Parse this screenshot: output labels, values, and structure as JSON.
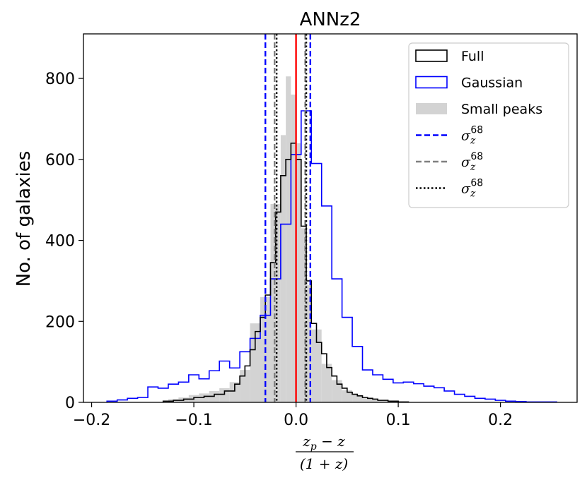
{
  "chart_data": {
    "type": "histogram",
    "title": "ANNz2",
    "xlabel_numerator": "z",
    "xlabel_numerator_sub": "p",
    "xlabel_numerator_rest": " − z",
    "xlabel_denominator": "(1 + z)",
    "ylabel": "No. of galaxies",
    "xlim": [
      -0.208,
      0.275
    ],
    "ylim": [
      0,
      910
    ],
    "xticks": [
      -0.2,
      -0.1,
      0.0,
      0.1,
      0.2
    ],
    "xtick_labels": [
      "−0.2",
      "−0.1",
      "0.0",
      "0.1",
      "0.2"
    ],
    "yticks": [
      0,
      200,
      400,
      600,
      800
    ],
    "ytick_labels": [
      "0",
      "200",
      "400",
      "600",
      "800"
    ],
    "legend_position": "top-right",
    "series": [
      {
        "name": "Small peaks",
        "style": "filled",
        "color": "#d3d3d3",
        "edges": [
          -0.125,
          -0.115,
          -0.105,
          -0.095,
          -0.085,
          -0.075,
          -0.065,
          -0.055,
          -0.045,
          -0.035,
          -0.025,
          -0.015,
          -0.01,
          -0.005,
          0.0,
          0.005,
          0.01,
          0.015,
          0.025,
          0.035,
          0.045,
          0.055,
          0.065,
          0.075,
          0.085,
          0.095,
          0.105
        ],
        "values": [
          8,
          12,
          18,
          22,
          28,
          35,
          50,
          80,
          195,
          260,
          490,
          660,
          805,
          760,
          640,
          430,
          290,
          180,
          95,
          55,
          30,
          18,
          10,
          6,
          4,
          2
        ]
      },
      {
        "name": "Gaussian",
        "style": "step",
        "color": "#0000ff",
        "edges": [
          -0.185,
          -0.175,
          -0.165,
          -0.155,
          -0.145,
          -0.135,
          -0.125,
          -0.115,
          -0.105,
          -0.095,
          -0.085,
          -0.075,
          -0.065,
          -0.055,
          -0.045,
          -0.035,
          -0.025,
          -0.015,
          -0.005,
          0.005,
          0.015,
          0.025,
          0.035,
          0.045,
          0.055,
          0.065,
          0.075,
          0.085,
          0.095,
          0.105,
          0.115,
          0.125,
          0.135,
          0.145,
          0.155,
          0.165,
          0.175,
          0.185,
          0.195,
          0.205,
          0.215,
          0.225,
          0.235,
          0.245,
          0.255
        ],
        "values": [
          3,
          6,
          10,
          12,
          38,
          35,
          45,
          50,
          68,
          58,
          78,
          102,
          85,
          125,
          158,
          215,
          305,
          440,
          612,
          720,
          590,
          485,
          305,
          210,
          138,
          80,
          68,
          57,
          48,
          50,
          46,
          40,
          36,
          28,
          20,
          15,
          10,
          8,
          5,
          3,
          2,
          1,
          1,
          1
        ]
      },
      {
        "name": "Full",
        "style": "step",
        "color": "#000000",
        "edges": [
          -0.13,
          -0.12,
          -0.11,
          -0.1,
          -0.09,
          -0.08,
          -0.07,
          -0.06,
          -0.055,
          -0.05,
          -0.045,
          -0.04,
          -0.035,
          -0.03,
          -0.025,
          -0.02,
          -0.015,
          -0.01,
          -0.005,
          0.0,
          0.005,
          0.01,
          0.015,
          0.02,
          0.025,
          0.03,
          0.035,
          0.04,
          0.045,
          0.05,
          0.055,
          0.06,
          0.065,
          0.07,
          0.075,
          0.08,
          0.09,
          0.1,
          0.11
        ],
        "values": [
          3,
          5,
          8,
          12,
          15,
          20,
          28,
          45,
          65,
          90,
          130,
          175,
          210,
          265,
          345,
          470,
          560,
          600,
          640,
          600,
          435,
          300,
          195,
          148,
          120,
          86,
          65,
          45,
          35,
          25,
          20,
          16,
          12,
          10,
          8,
          5,
          3,
          1
        ]
      }
    ],
    "vlines": [
      {
        "name": "σ_z^68",
        "color": "#0000ff",
        "dash": "dashed",
        "x": [
          -0.03,
          0.014
        ]
      },
      {
        "name": "σ_z^68",
        "color": "#808080",
        "dash": "dashed",
        "x": [
          -0.021,
          0.009
        ]
      },
      {
        "name": "σ_z^68",
        "color": "#000000",
        "dash": "dotted",
        "x": [
          -0.019,
          0.01
        ]
      },
      {
        "name": "zero",
        "color": "#ff0000",
        "dash": "solid",
        "x": [
          0.0
        ]
      }
    ],
    "legend": [
      {
        "label": "Full",
        "kind": "box",
        "edge": "#000000",
        "fill": "none"
      },
      {
        "label": "Gaussian",
        "kind": "box",
        "edge": "#0000ff",
        "fill": "none"
      },
      {
        "label": "Small peaks",
        "kind": "box",
        "edge": "none",
        "fill": "#d3d3d3"
      },
      {
        "label": "σ",
        "sub": "z",
        "sup": "68",
        "kind": "line",
        "color": "#0000ff",
        "dash": "dashed"
      },
      {
        "label": "σ",
        "sub": "z",
        "sup": "68",
        "kind": "line",
        "color": "#808080",
        "dash": "dashed"
      },
      {
        "label": "σ",
        "sub": "z",
        "sup": "68",
        "kind": "line",
        "color": "#000000",
        "dash": "dotted"
      }
    ]
  }
}
